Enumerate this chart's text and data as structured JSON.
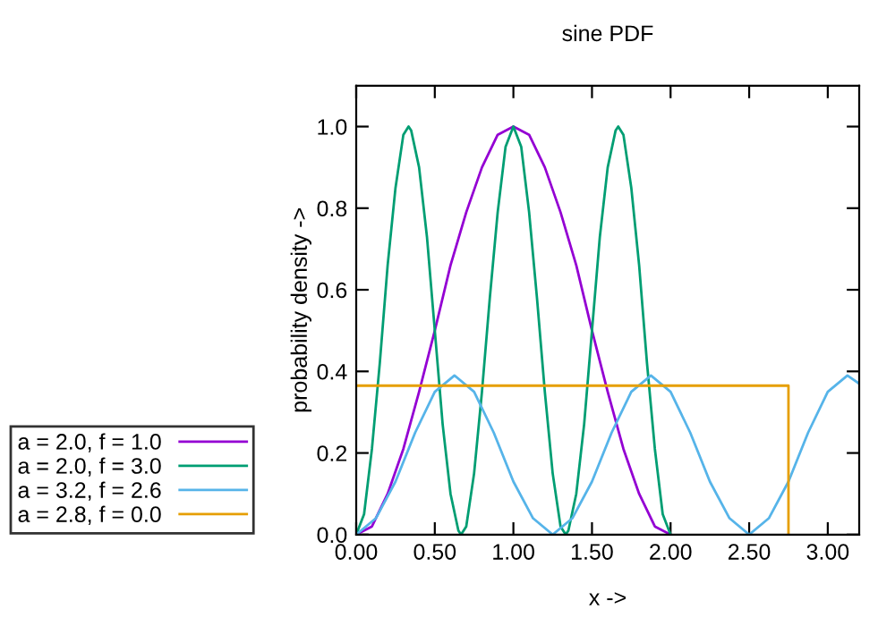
{
  "chart_data": {
    "type": "line",
    "title": "sine PDF",
    "xlabel": "x ->",
    "ylabel": "probability density ->",
    "xlim": [
      0,
      3.2
    ],
    "ylim": [
      0,
      1.1
    ],
    "xticks": [
      {
        "value": 0,
        "label": "0.00"
      },
      {
        "value": 0.5,
        "label": "0.50"
      },
      {
        "value": 1,
        "label": "1.00"
      },
      {
        "value": 1.5,
        "label": "1.50"
      },
      {
        "value": 2,
        "label": "2.00"
      },
      {
        "value": 2.5,
        "label": "2.50"
      },
      {
        "value": 3,
        "label": "3.00"
      }
    ],
    "yticks": [
      {
        "value": 0,
        "label": "0.0"
      },
      {
        "value": 0.2,
        "label": "0.2"
      },
      {
        "value": 0.4,
        "label": "0.4"
      },
      {
        "value": 0.6,
        "label": "0.6"
      },
      {
        "value": 0.8,
        "label": "0.8"
      },
      {
        "value": 1,
        "label": "1.0"
      }
    ],
    "grid": false,
    "legend": "bottom left",
    "marker": "none",
    "line_style": "solid",
    "series": [
      {
        "name": "a = 2.0, f = 1.0",
        "color": "#9400d3",
        "x": [
          0,
          0.1,
          0.2,
          0.3,
          0.4,
          0.5,
          0.6,
          0.7,
          0.8,
          0.9,
          1.0,
          1.1,
          1.2,
          1.3,
          1.4,
          1.5,
          1.6,
          1.7,
          1.8,
          1.9,
          2.0
        ],
        "values": [
          0,
          0.02,
          0.1,
          0.21,
          0.35,
          0.5,
          0.66,
          0.79,
          0.9,
          0.98,
          1,
          0.98,
          0.9,
          0.79,
          0.66,
          0.5,
          0.35,
          0.21,
          0.1,
          0.02,
          0
        ]
      },
      {
        "name": "a = 2.0, f = 3.0",
        "color": "#009e73",
        "x": [
          0,
          0.05,
          0.1,
          0.15,
          0.2,
          0.25,
          0.3,
          0.333,
          0.35,
          0.4,
          0.45,
          0.5,
          0.55,
          0.6,
          0.65,
          0.667,
          0.7,
          0.75,
          0.8,
          0.85,
          0.9,
          0.95,
          1.0,
          1.05,
          1.1,
          1.15,
          1.2,
          1.25,
          1.3,
          1.333,
          1.35,
          1.4,
          1.45,
          1.5,
          1.55,
          1.6,
          1.65,
          1.667,
          1.7,
          1.75,
          1.8,
          1.85,
          1.9,
          1.95,
          2.0
        ],
        "values": [
          0,
          0.05,
          0.21,
          0.42,
          0.66,
          0.85,
          0.98,
          1,
          0.99,
          0.9,
          0.73,
          0.5,
          0.27,
          0.1,
          0.01,
          0,
          0.02,
          0.15,
          0.35,
          0.58,
          0.79,
          0.95,
          1,
          0.95,
          0.79,
          0.58,
          0.35,
          0.15,
          0.02,
          0,
          0.01,
          0.1,
          0.27,
          0.5,
          0.73,
          0.9,
          0.99,
          1,
          0.98,
          0.85,
          0.66,
          0.42,
          0.21,
          0.05,
          0
        ]
      },
      {
        "name": "a = 3.2, f = 2.6",
        "color": "#56b4e9",
        "x": [
          0,
          0.125,
          0.25,
          0.375,
          0.5,
          0.625,
          0.75,
          0.875,
          1.0,
          1.125,
          1.25,
          1.375,
          1.5,
          1.625,
          1.75,
          1.875,
          2.0,
          2.125,
          2.25,
          2.375,
          2.5,
          2.625,
          2.75,
          2.875,
          3.0,
          3.125,
          3.2
        ],
        "values": [
          0,
          0.04,
          0.13,
          0.25,
          0.35,
          0.39,
          0.35,
          0.25,
          0.13,
          0.04,
          0,
          0.04,
          0.13,
          0.25,
          0.35,
          0.39,
          0.35,
          0.25,
          0.13,
          0.04,
          0,
          0.04,
          0.13,
          0.25,
          0.35,
          0.39,
          0.37
        ]
      },
      {
        "name": "a = 2.8, f = 0.0",
        "color": "#e69f00",
        "x": [
          0,
          2.75,
          2.75
        ],
        "values": [
          0.365,
          0.365,
          0
        ]
      }
    ]
  }
}
